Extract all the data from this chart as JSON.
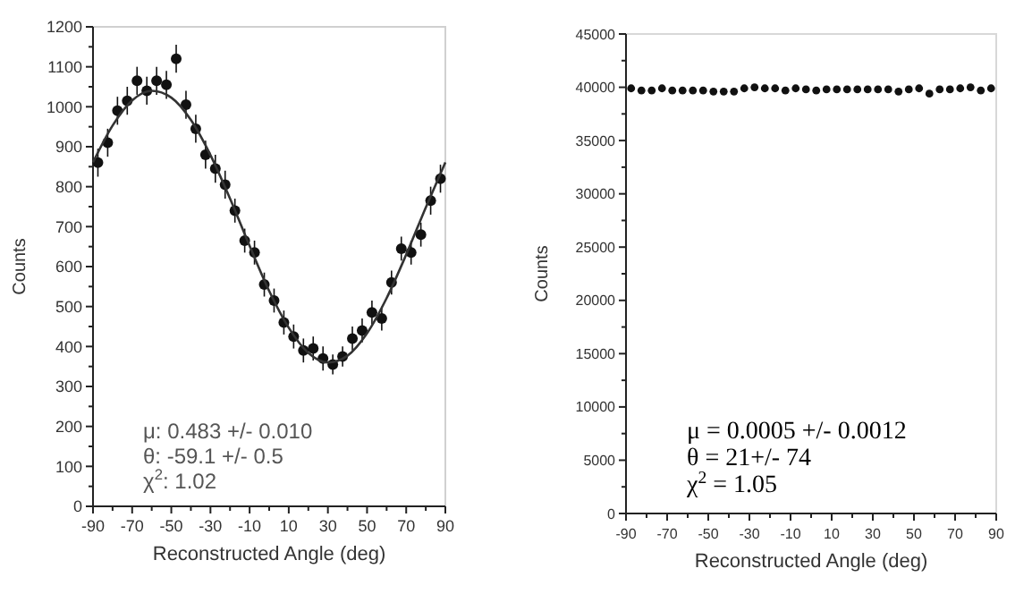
{
  "chart_data": [
    {
      "type": "scatter",
      "xlabel": "Reconstructed Angle (deg)",
      "ylabel": "Counts",
      "xlim": [
        -90,
        90
      ],
      "ylim": [
        0,
        1200
      ],
      "xticks": [
        -90,
        {
          "value": -80,
          "label": null
        },
        -70,
        {
          "value": -60,
          "label": null
        },
        -50,
        {
          "value": -40,
          "label": null
        },
        -30,
        {
          "value": -20,
          "label": null
        },
        -10,
        {
          "value": 0,
          "label": null
        },
        10,
        {
          "value": 20,
          "label": null
        },
        30,
        {
          "value": 40,
          "label": null
        },
        50,
        {
          "value": 60,
          "label": null
        },
        70,
        {
          "value": 80,
          "label": null
        },
        90
      ],
      "yticks": [
        0,
        {
          "value": 50,
          "label": null
        },
        100,
        {
          "value": 150,
          "label": null
        },
        200,
        {
          "value": 250,
          "label": null
        },
        300,
        {
          "value": 350,
          "label": null
        },
        400,
        {
          "value": 450,
          "label": null
        },
        500,
        {
          "value": 550,
          "label": null
        },
        600,
        {
          "value": 650,
          "label": null
        },
        700,
        {
          "value": 750,
          "label": null
        },
        800,
        {
          "value": 850,
          "label": null
        },
        900,
        {
          "value": 950,
          "label": null
        },
        1000,
        {
          "value": 1050,
          "label": null
        },
        1100,
        {
          "value": 1150,
          "label": null
        },
        1200
      ],
      "marker": "circle",
      "series": [
        {
          "color": "#111111",
          "x": [
            -87.5,
            -82.5,
            -77.5,
            -72.5,
            -67.5,
            -62.5,
            -57.5,
            -52.5,
            -47.5,
            -42.5,
            -37.5,
            -32.5,
            -27.5,
            -22.5,
            -17.5,
            -12.5,
            -7.5,
            -2.5,
            2.5,
            7.5,
            12.5,
            17.5,
            22.5,
            27.5,
            32.5,
            37.5,
            42.5,
            47.5,
            52.5,
            57.5,
            62.5,
            67.5,
            72.5,
            77.5,
            82.5,
            87.5
          ],
          "values": [
            860,
            910,
            990,
            1015,
            1065,
            1040,
            1065,
            1055,
            1120,
            1005,
            945,
            880,
            845,
            805,
            740,
            665,
            635,
            555,
            515,
            460,
            425,
            390,
            395,
            370,
            355,
            375,
            420,
            440,
            485,
            470,
            560,
            645,
            635,
            680,
            765,
            820
          ],
          "errors": [
            35,
            35,
            35,
            35,
            35,
            35,
            35,
            35,
            35,
            35,
            35,
            35,
            35,
            35,
            30,
            30,
            30,
            30,
            30,
            30,
            30,
            30,
            30,
            30,
            25,
            25,
            30,
            30,
            30,
            30,
            30,
            30,
            30,
            30,
            35,
            35
          ]
        },
        {
          "type": "line",
          "marker": "none",
          "color": "#333333",
          "x": [
            -90,
            -80,
            -70,
            -60,
            -50,
            -40,
            -30,
            -20,
            -10,
            0,
            10,
            20,
            30,
            40,
            50,
            60,
            70,
            80,
            90
          ],
          "values": [
            861,
            953,
            1016,
            1040,
            1023,
            967,
            879,
            770,
            652,
            539,
            447,
            384,
            360,
            377,
            433,
            521,
            630,
            748,
            861
          ]
        }
      ],
      "annotations": [
        "μ:  0.483 +/- 0.010",
        "θ:  -59.1 +/- 0.5",
        "χ$^{2}$:  1.02"
      ]
    },
    {
      "type": "scatter",
      "xlabel": "Reconstructed Angle (deg)",
      "ylabel": "Counts",
      "xlim": [
        -90,
        90
      ],
      "ylim": [
        0,
        45000
      ],
      "xticks": [
        -90,
        {
          "value": -80,
          "label": null
        },
        -70,
        {
          "value": -60,
          "label": null
        },
        -50,
        {
          "value": -40,
          "label": null
        },
        -30,
        {
          "value": -20,
          "label": null
        },
        -10,
        {
          "value": 0,
          "label": null
        },
        10,
        {
          "value": 20,
          "label": null
        },
        30,
        {
          "value": 40,
          "label": null
        },
        50,
        {
          "value": 60,
          "label": null
        },
        70,
        {
          "value": 80,
          "label": null
        },
        90
      ],
      "yticks": [
        0,
        {
          "value": 2500,
          "label": null
        },
        5000,
        {
          "value": 7500,
          "label": null
        },
        10000,
        {
          "value": 12500,
          "label": null
        },
        15000,
        {
          "value": 17500,
          "label": null
        },
        20000,
        {
          "value": 22500,
          "label": null
        },
        25000,
        {
          "value": 27500,
          "label": null
        },
        30000,
        {
          "value": 32500,
          "label": null
        },
        35000,
        {
          "value": 37500,
          "label": null
        },
        40000,
        {
          "value": 42500,
          "label": null
        },
        45000
      ],
      "marker": "circle",
      "series": [
        {
          "color": "#111111",
          "x": [
            -87.5,
            -82.5,
            -77.5,
            -72.5,
            -67.5,
            -62.5,
            -57.5,
            -52.5,
            -47.5,
            -42.5,
            -37.5,
            -32.5,
            -27.5,
            -22.5,
            -17.5,
            -12.5,
            -7.5,
            -2.5,
            2.5,
            7.5,
            12.5,
            17.5,
            22.5,
            27.5,
            32.5,
            37.5,
            42.5,
            47.5,
            52.5,
            57.5,
            62.5,
            67.5,
            72.5,
            77.5,
            82.5,
            87.5
          ],
          "values": [
            39900,
            39700,
            39700,
            39900,
            39700,
            39700,
            39700,
            39700,
            39600,
            39600,
            39600,
            39900,
            40000,
            39900,
            39900,
            39700,
            39900,
            39800,
            39700,
            39800,
            39800,
            39800,
            39800,
            39800,
            39800,
            39800,
            39600,
            39800,
            39900,
            39400,
            39800,
            39800,
            39900,
            40000,
            39700,
            39900
          ],
          "errors": [
            200,
            200,
            200,
            200,
            200,
            200,
            200,
            200,
            200,
            200,
            200,
            200,
            200,
            200,
            200,
            200,
            200,
            200,
            200,
            200,
            200,
            200,
            200,
            200,
            200,
            200,
            200,
            200,
            200,
            200,
            200,
            200,
            200,
            200,
            200,
            200
          ]
        }
      ],
      "annotations": [
        "μ = 0.0005 +/- 0.0012",
        "θ = 21+/- 74",
        "χ$^{2}$ = 1.05"
      ]
    }
  ]
}
